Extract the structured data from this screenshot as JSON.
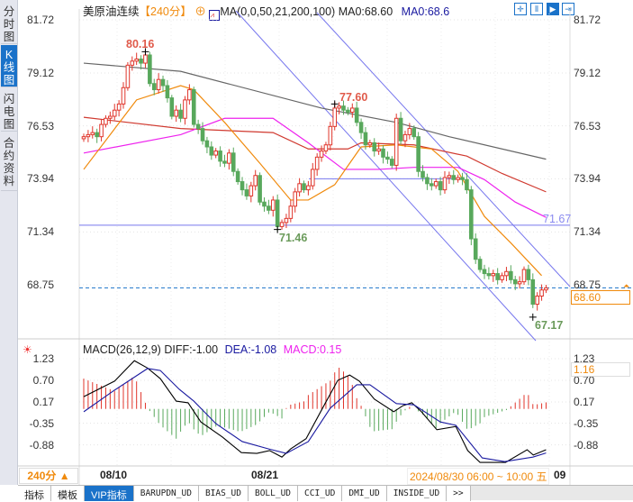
{
  "sidebar": {
    "tabs": [
      {
        "label": "分时图"
      },
      {
        "label": "K线图",
        "active": true
      },
      {
        "label": "闪电图"
      },
      {
        "label": "合约资料"
      }
    ]
  },
  "header": {
    "instrument": "美原油连续",
    "period": "【240分】",
    "indicator_icon": "chart-icon",
    "ma_params": "MA(0,0,50,21,200,100)",
    "ma0_a": "MA0:68.60",
    "ma0_b": "MA0:68.6",
    "toolbar_icons": [
      "crosshair-icon",
      "range-icon",
      "cursor-icon",
      "exit-icon"
    ]
  },
  "main_axis": {
    "ticks": [
      "81.72",
      "79.12",
      "76.53",
      "73.94",
      "71.34",
      "68.75"
    ]
  },
  "annotations": {
    "high1": "80.16",
    "high2": "77.60",
    "low1": "71.46",
    "low2": "67.17",
    "line_label": "71.67",
    "current_price": "68.60"
  },
  "macd": {
    "title": "MACD(26,12,9)",
    "diff": "DIFF:-1.00",
    "dea": "DEA:-1.08",
    "macd": "MACD:0.15",
    "ticks": [
      "1.23",
      "0.70",
      "0.17",
      "-0.35",
      "-0.88"
    ],
    "current": "1.16"
  },
  "time_axis": {
    "period_button": "240分 ▲",
    "labels": [
      "08/10",
      "08/21"
    ],
    "cursor_label": "2024/08/30 06:00 ~ 10:00 五",
    "tail": "09"
  },
  "bottom_tabs": [
    {
      "label": "指标"
    },
    {
      "label": "模板"
    },
    {
      "label": "VIP指标",
      "active": true
    },
    {
      "label": "BARUPDN_UD"
    },
    {
      "label": "BIAS_UD"
    },
    {
      "label": "BOLL_UD"
    },
    {
      "label": "CCI_UD"
    },
    {
      "label": "DMI_UD"
    },
    {
      "label": "INSIDE_UD"
    },
    {
      "label": ">>"
    }
  ],
  "colors": {
    "up": "#e0352b",
    "down": "#58a85c",
    "ma_gray": "#666666",
    "ma_red": "#d0392f",
    "ma_magenta": "#ee22ee",
    "ma_orange": "#f08a0c",
    "channel": "#7777ee",
    "accent": "#1a72c9",
    "diff": "#000000",
    "dea": "#1a1aa0"
  },
  "chart_data": {
    "type": "candlestick",
    "closes": [
      76.0,
      76.1,
      76.2,
      76.0,
      76.6,
      76.9,
      77.0,
      77.3,
      77.6,
      78.4,
      79.5,
      79.7,
      79.8,
      79.6,
      80.0,
      78.6,
      78.3,
      78.8,
      78.5,
      77.9,
      77.0,
      77.3,
      76.9,
      77.8,
      78.3,
      76.6,
      76.4,
      75.8,
      75.5,
      75.1,
      75.3,
      74.8,
      74.7,
      75.2,
      74.3,
      73.8,
      73.4,
      73.1,
      73.6,
      74.1,
      72.8,
      72.6,
      72.4,
      72.9,
      71.6,
      71.8,
      72.0,
      72.6,
      73.3,
      73.7,
      73.4,
      73.6,
      74.4,
      75.0,
      75.3,
      75.6,
      76.5,
      77.4,
      77.5,
      77.3,
      77.2,
      77.4,
      76.7,
      76.2,
      75.6,
      75.7,
      75.3,
      75.4,
      75.0,
      74.9,
      74.6,
      76.9,
      75.8,
      76.1,
      76.4,
      76.0,
      74.3,
      74.0,
      73.7,
      73.6,
      73.8,
      73.4,
      74.0,
      74.1,
      73.9,
      74.0,
      73.9,
      73.4,
      71.0,
      70.0,
      69.5,
      69.3,
      69.2,
      69.3,
      69.0,
      69.2,
      69.4,
      69.0,
      68.8,
      68.9,
      69.5,
      69.0,
      67.8,
      68.2,
      68.5,
      68.6
    ],
    "ylim": [
      67.0,
      81.72
    ],
    "ma_lines": {
      "gray": [
        [
          0,
          79.6
        ],
        [
          22,
          79.2
        ],
        [
          54,
          77.4
        ],
        [
          71,
          76.7
        ],
        [
          83,
          76.0
        ],
        [
          105,
          74.9
        ]
      ],
      "red": [
        [
          0,
          76.95
        ],
        [
          22,
          76.4
        ],
        [
          43,
          76.2
        ],
        [
          51,
          75.4
        ],
        [
          60,
          75.4
        ],
        [
          63,
          75.7
        ],
        [
          75,
          75.6
        ],
        [
          87,
          75.05
        ],
        [
          95,
          74.2
        ],
        [
          105,
          73.3
        ]
      ],
      "magenta": [
        [
          0,
          75.2
        ],
        [
          22,
          76.1
        ],
        [
          32,
          76.9
        ],
        [
          43,
          76.9
        ],
        [
          51,
          75.7
        ],
        [
          59,
          74.4
        ],
        [
          67,
          74.4
        ],
        [
          75,
          74.5
        ],
        [
          85,
          74.5
        ],
        [
          91,
          73.9
        ],
        [
          98,
          72.8
        ],
        [
          105,
          72.05
        ]
      ],
      "orange": [
        [
          0,
          74.4
        ],
        [
          12,
          77.8
        ],
        [
          22,
          78.5
        ],
        [
          25,
          78.3
        ],
        [
          32,
          76.7
        ],
        [
          40,
          74.7
        ],
        [
          47,
          72.9
        ],
        [
          51,
          72.9
        ],
        [
          57,
          73.65
        ],
        [
          63,
          75.5
        ],
        [
          71,
          75.6
        ],
        [
          79,
          75.4
        ],
        [
          85,
          74.3
        ],
        [
          91,
          72.1
        ],
        [
          97,
          70.8
        ],
        [
          104,
          69.2
        ]
      ]
    },
    "horizontal_levels": [
      73.94,
      71.67,
      68.6
    ],
    "macd_diff": [
      [
        0,
        0.3
      ],
      [
        7,
        0.68
      ],
      [
        11.5,
        1.18
      ],
      [
        14.5,
        1.0
      ],
      [
        17.4,
        0.74
      ],
      [
        21,
        0.19
      ],
      [
        23.7,
        0.15
      ],
      [
        26.6,
        -0.32
      ],
      [
        31.5,
        -0.69
      ],
      [
        35.8,
        -1.07
      ],
      [
        39.3,
        -1.09
      ],
      [
        42.2,
        -1.02
      ],
      [
        45,
        -1.18
      ],
      [
        47,
        -0.98
      ],
      [
        50.5,
        -0.73
      ],
      [
        54.8,
        0.13
      ],
      [
        57.7,
        0.7
      ],
      [
        60.4,
        0.83
      ],
      [
        62.6,
        0.68
      ],
      [
        66,
        0.24
      ],
      [
        70.4,
        -0.07
      ],
      [
        72.5,
        0.08
      ],
      [
        74.5,
        0.15
      ],
      [
        76.7,
        -0.07
      ],
      [
        80.2,
        -0.51
      ],
      [
        84.5,
        -0.43
      ],
      [
        87.2,
        -1.02
      ],
      [
        90,
        -1.31
      ],
      [
        95.8,
        -1.31
      ],
      [
        100.7,
        -1.0
      ],
      [
        102.1,
        -1.13
      ],
      [
        105,
        -1.0
      ]
    ],
    "macd_dea": [
      [
        0,
        -0.07
      ],
      [
        7,
        0.46
      ],
      [
        14.5,
        0.99
      ],
      [
        17.4,
        0.94
      ],
      [
        21.7,
        0.48
      ],
      [
        25,
        0.19
      ],
      [
        30,
        -0.36
      ],
      [
        36,
        -0.8
      ],
      [
        42,
        -0.98
      ],
      [
        46,
        -1.09
      ],
      [
        51,
        -0.8
      ],
      [
        56,
        0.02
      ],
      [
        62,
        0.59
      ],
      [
        65,
        0.59
      ],
      [
        71,
        0.13
      ],
      [
        75,
        0.1
      ],
      [
        81,
        -0.32
      ],
      [
        84.5,
        -0.4
      ],
      [
        90.5,
        -1.2
      ],
      [
        95.6,
        -1.29
      ],
      [
        102,
        -1.18
      ],
      [
        105,
        -1.08
      ]
    ],
    "macd_ylim": [
      -1.4,
      1.35
    ]
  }
}
